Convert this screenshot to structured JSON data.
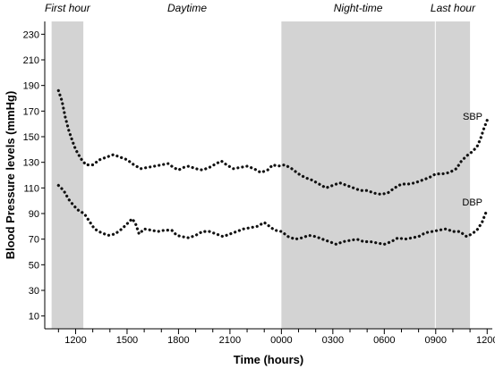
{
  "chart_data": {
    "type": "line",
    "title": "",
    "xlabel": "Time (hours)",
    "ylabel": "Blood Pressure levels (mmHg)",
    "x_unit": "clock hour (24h, continuing past midnight)",
    "xlim": [
      10.2,
      36.3
    ],
    "ylim": [
      0,
      240
    ],
    "y_ticks": [
      10,
      30,
      50,
      70,
      90,
      110,
      130,
      150,
      170,
      190,
      210,
      230
    ],
    "y_tick_labels": [
      "10",
      "30",
      "50",
      "70",
      "90",
      "110",
      "130",
      "150",
      "170",
      "190",
      "210",
      "230"
    ],
    "x_ticks": [
      12,
      15,
      18,
      21,
      24,
      27,
      30,
      33,
      36
    ],
    "x_tick_labels": [
      "1200",
      "1500",
      "1800",
      "2100",
      "0000",
      "0300",
      "0600",
      "0900",
      "1200"
    ],
    "grid": false,
    "shaded_periods": [
      {
        "label": "First hour",
        "start": 10.6,
        "end": 12.45
      },
      {
        "label": "Night-time",
        "start": 24.0,
        "end": 32.95
      },
      {
        "label": "Last hour",
        "start": 33.0,
        "end": 35.0
      }
    ],
    "unshaded_period_labels": [
      {
        "label": "Daytime",
        "center": 18.5
      }
    ],
    "series": [
      {
        "name": "SBP",
        "style": "dotted",
        "points": [
          [
            11.0,
            186
          ],
          [
            11.2,
            178
          ],
          [
            11.4,
            165
          ],
          [
            11.6,
            155
          ],
          [
            11.8,
            147
          ],
          [
            12.0,
            140
          ],
          [
            12.3,
            133
          ],
          [
            12.6,
            128
          ],
          [
            13.0,
            128
          ],
          [
            13.4,
            132
          ],
          [
            13.8,
            134
          ],
          [
            14.2,
            136
          ],
          [
            14.6,
            134
          ],
          [
            15.0,
            132
          ],
          [
            15.4,
            128
          ],
          [
            15.8,
            125
          ],
          [
            16.2,
            126
          ],
          [
            16.6,
            127
          ],
          [
            17.0,
            128
          ],
          [
            17.4,
            129
          ],
          [
            17.7,
            126
          ],
          [
            18.0,
            124
          ],
          [
            18.3,
            126
          ],
          [
            18.6,
            127
          ],
          [
            19.0,
            125
          ],
          [
            19.4,
            124
          ],
          [
            19.8,
            126
          ],
          [
            20.2,
            129
          ],
          [
            20.5,
            131
          ],
          [
            20.8,
            128
          ],
          [
            21.2,
            125
          ],
          [
            21.6,
            126
          ],
          [
            22.0,
            127
          ],
          [
            22.4,
            125
          ],
          [
            22.8,
            122
          ],
          [
            23.2,
            124
          ],
          [
            23.5,
            128
          ],
          [
            23.8,
            127
          ],
          [
            24.2,
            128
          ],
          [
            24.6,
            125
          ],
          [
            25.0,
            121
          ],
          [
            25.4,
            118
          ],
          [
            25.8,
            116
          ],
          [
            26.2,
            113
          ],
          [
            26.6,
            110
          ],
          [
            27.0,
            112
          ],
          [
            27.4,
            114
          ],
          [
            27.8,
            112
          ],
          [
            28.2,
            110
          ],
          [
            28.6,
            108
          ],
          [
            29.0,
            108
          ],
          [
            29.4,
            106
          ],
          [
            29.8,
            105
          ],
          [
            30.2,
            106
          ],
          [
            30.6,
            110
          ],
          [
            31.0,
            113
          ],
          [
            31.4,
            113
          ],
          [
            31.8,
            114
          ],
          [
            32.2,
            116
          ],
          [
            32.6,
            118
          ],
          [
            33.0,
            121
          ],
          [
            33.4,
            121
          ],
          [
            33.8,
            122
          ],
          [
            34.2,
            125
          ],
          [
            34.5,
            131
          ],
          [
            34.8,
            135
          ],
          [
            35.1,
            138
          ],
          [
            35.4,
            142
          ],
          [
            35.6,
            148
          ],
          [
            35.8,
            156
          ],
          [
            36.0,
            163
          ]
        ]
      },
      {
        "name": "DBP",
        "style": "dotted",
        "points": [
          [
            11.0,
            112
          ],
          [
            11.3,
            108
          ],
          [
            11.6,
            101
          ],
          [
            11.9,
            96
          ],
          [
            12.2,
            92
          ],
          [
            12.5,
            90
          ],
          [
            12.8,
            84
          ],
          [
            13.1,
            78
          ],
          [
            13.5,
            75
          ],
          [
            13.9,
            73
          ],
          [
            14.3,
            74
          ],
          [
            14.7,
            78
          ],
          [
            15.0,
            82
          ],
          [
            15.3,
            86
          ],
          [
            15.5,
            82
          ],
          [
            15.7,
            74
          ],
          [
            16.0,
            78
          ],
          [
            16.4,
            77
          ],
          [
            16.8,
            76
          ],
          [
            17.2,
            77
          ],
          [
            17.6,
            77
          ],
          [
            17.9,
            73
          ],
          [
            18.2,
            72
          ],
          [
            18.6,
            71
          ],
          [
            19.0,
            73
          ],
          [
            19.4,
            76
          ],
          [
            19.8,
            76
          ],
          [
            20.2,
            74
          ],
          [
            20.6,
            72
          ],
          [
            21.0,
            74
          ],
          [
            21.4,
            76
          ],
          [
            21.8,
            78
          ],
          [
            22.2,
            79
          ],
          [
            22.6,
            80
          ],
          [
            23.0,
            83
          ],
          [
            23.3,
            80
          ],
          [
            23.6,
            77
          ],
          [
            24.0,
            76
          ],
          [
            24.4,
            72
          ],
          [
            24.8,
            70
          ],
          [
            25.2,
            71
          ],
          [
            25.6,
            73
          ],
          [
            26.0,
            72
          ],
          [
            26.4,
            70
          ],
          [
            26.8,
            68
          ],
          [
            27.2,
            66
          ],
          [
            27.6,
            68
          ],
          [
            28.0,
            69
          ],
          [
            28.4,
            70
          ],
          [
            28.8,
            68
          ],
          [
            29.2,
            68
          ],
          [
            29.6,
            67
          ],
          [
            30.0,
            66
          ],
          [
            30.4,
            68
          ],
          [
            30.8,
            71
          ],
          [
            31.2,
            70
          ],
          [
            31.6,
            71
          ],
          [
            32.0,
            72
          ],
          [
            32.4,
            75
          ],
          [
            32.8,
            76
          ],
          [
            33.2,
            77
          ],
          [
            33.6,
            78
          ],
          [
            34.0,
            76
          ],
          [
            34.4,
            76
          ],
          [
            34.8,
            72
          ],
          [
            35.1,
            74
          ],
          [
            35.4,
            77
          ],
          [
            35.7,
            83
          ],
          [
            35.9,
            90
          ],
          [
            36.0,
            92
          ]
        ]
      }
    ],
    "series_labels": [
      {
        "name": "SBP",
        "y": 166
      },
      {
        "name": "DBP",
        "y": 99
      }
    ]
  }
}
